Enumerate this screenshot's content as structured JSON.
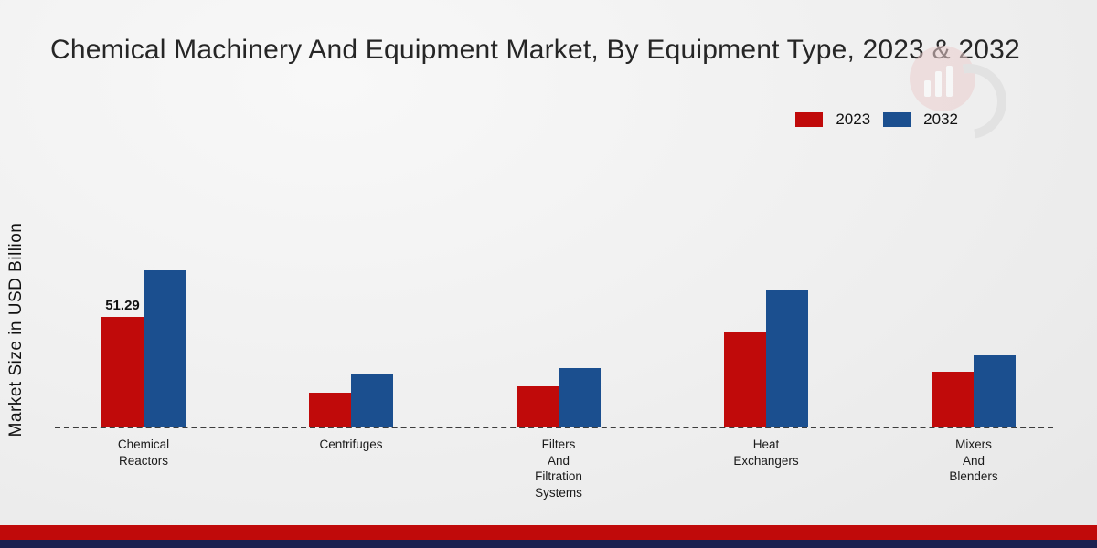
{
  "title": "Chemical Machinery And Equipment Market, By Equipment Type, 2023 & 2032",
  "y_axis_label": "Market Size in USD Billion",
  "legend": [
    {
      "label": "2023",
      "color": "#c00a0a"
    },
    {
      "label": "2032",
      "color": "#1b4f8f"
    }
  ],
  "colors": {
    "bar_2023": "#c00a0a",
    "bar_2032": "#1b4f8f",
    "footer_red": "#c00a0a",
    "footer_navy": "#1b2150",
    "background": "#efefef",
    "baseline": "#3c3c3c"
  },
  "chart_data": {
    "type": "bar",
    "title": "Chemical Machinery And Equipment Market, By Equipment Type, 2023 & 2032",
    "xlabel": "",
    "ylabel": "Market Size in USD Billion",
    "ylim": [
      0,
      80
    ],
    "grid": false,
    "legend_position": "top-right",
    "baseline_style": "dashed",
    "categories": [
      "Chemical Reactors",
      "Centrifuges",
      "Filters And Filtration Systems",
      "Heat Exchangers",
      "Mixers And Blenders"
    ],
    "categories_display": [
      [
        "Chemical",
        "Reactors"
      ],
      [
        "Centrifuges"
      ],
      [
        "Filters",
        "And",
        "Filtration",
        "Systems"
      ],
      [
        "Heat",
        "Exchangers"
      ],
      [
        "Mixers",
        "And",
        "Blenders"
      ]
    ],
    "series": [
      {
        "name": "2023",
        "color": "#c00a0a",
        "values": [
          51.29,
          16,
          19,
          44.5,
          26
        ]
      },
      {
        "name": "2032",
        "color": "#1b4f8f",
        "values": [
          73,
          25,
          27.5,
          63.5,
          33.5
        ]
      }
    ],
    "data_labels": [
      {
        "series": "2023",
        "category": "Chemical Reactors",
        "text": "51.29"
      }
    ]
  }
}
